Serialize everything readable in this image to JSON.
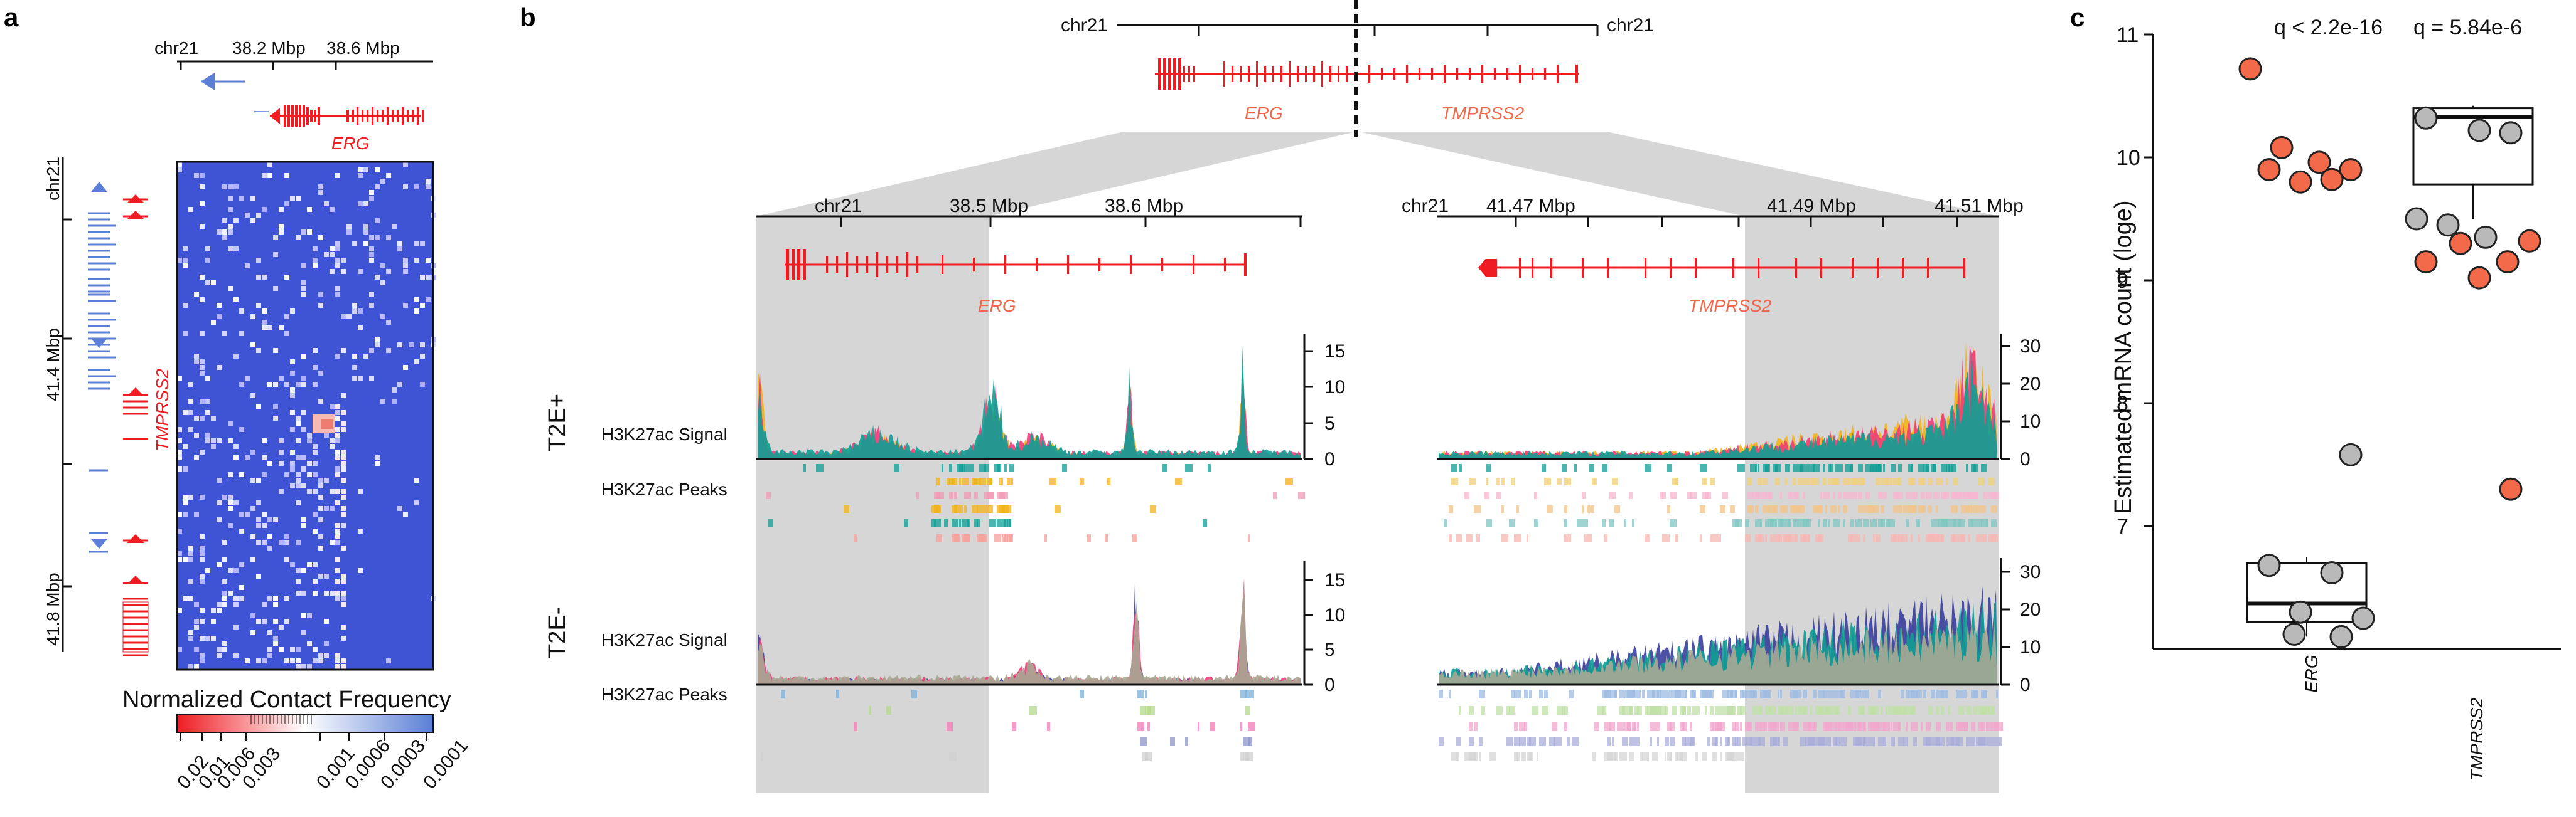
{
  "colors": {
    "erg_red": "#ef1c22",
    "gene_orange": "#f0684a",
    "gene_blue": "#5b7fd6",
    "hic_bg": "#3e54d4",
    "shade": "#d6d6d6",
    "teal": "#0f9e94",
    "gold": "#f3b21a",
    "pink": "#ee3d7a",
    "navy": "#3a3e9c",
    "grey_fill": "#a9a993",
    "point_red": "#f26a4a",
    "point_grey": "#b9b9b9"
  },
  "panel_a": {
    "letter": "a",
    "chrom": "chr21",
    "top_ticks": [
      "38.2 Mbp",
      "38.6 Mbp"
    ],
    "side_ticks": [
      "41.4 Mbp",
      "41.8 Mbp"
    ],
    "side_chrom": "chr21",
    "gene_top": "ERG",
    "gene_side": "TMPRSS2",
    "colorbar_title": "Normalized Contact Frequency",
    "colorbar_ticks": [
      "0.02",
      "0.01",
      "0.006",
      "0.003",
      "0.001",
      "0.0006",
      "0.0003",
      "0.0001"
    ]
  },
  "panel_b": {
    "letter": "b",
    "overview": {
      "chrom_left": "chr21",
      "chrom_right": "chr21",
      "gene_left": "ERG",
      "gene_right": "TMPRSS2"
    },
    "left_locus": {
      "chrom": "chr21",
      "ticks": [
        "38.5 Mbp",
        "38.6 Mbp"
      ],
      "gene": "ERG"
    },
    "right_locus": {
      "chrom": "chr21",
      "ticks": [
        "41.47 Mbp",
        "41.49 Mbp",
        "41.51 Mbp"
      ],
      "gene": "TMPRSS2"
    },
    "group_pos": "T2E+",
    "group_neg": "T2E-",
    "signal_label": "H3K27ac Signal",
    "peaks_label": "H3K27ac Peaks",
    "y_left_pos": [
      "15",
      "10",
      "5",
      "0"
    ],
    "y_right_pos": [
      "30",
      "20",
      "10",
      "0"
    ],
    "y_left_neg": [
      "15",
      "10",
      "5",
      "0"
    ],
    "y_right_neg": [
      "30",
      "20",
      "10",
      "0"
    ]
  },
  "panel_c": {
    "letter": "c",
    "ylabel": "Estimated mRNA count (loge)",
    "yticks": [
      "11",
      "10",
      "9",
      "8",
      "7"
    ],
    "categories": [
      "ERG",
      "TMPRSS2"
    ],
    "qvals": [
      "q < 2.2e-16",
      "q = 5.84e-6"
    ]
  },
  "chart_data": {
    "type": "scatter",
    "title": "",
    "xlabel": "",
    "ylabel": "Estimated mRNA count (loge)",
    "ylim": [
      6.0,
      11.0
    ],
    "categories": [
      "ERG",
      "TMPRSS2"
    ],
    "series": [
      {
        "name": "",
        "color": "#f26a4a",
        "points": [
          [
            "ERG",
            10.72
          ],
          [
            "ERG",
            10.08
          ],
          [
            "ERG",
            9.96
          ],
          [
            "ERG",
            9.9
          ],
          [
            "ERG",
            9.9
          ],
          [
            "ERG",
            9.82
          ],
          [
            "ERG",
            9.8
          ],
          [
            "TMPRSS2",
            9.32
          ],
          [
            "TMPRSS2",
            9.3
          ],
          [
            "TMPRSS2",
            9.15
          ],
          [
            "TMPRSS2",
            9.15
          ],
          [
            "TMPRSS2",
            9.02
          ],
          [
            "TMPRSS2",
            7.3
          ]
        ]
      },
      {
        "name": "",
        "color": "#b9b9b9",
        "points": [
          [
            "ERG",
            7.58
          ],
          [
            "ERG",
            6.68
          ],
          [
            "ERG",
            6.62
          ],
          [
            "ERG",
            6.3
          ],
          [
            "ERG",
            6.25
          ],
          [
            "ERG",
            6.12
          ],
          [
            "ERG",
            6.1
          ],
          [
            "TMPRSS2",
            10.32
          ],
          [
            "TMPRSS2",
            10.22
          ],
          [
            "TMPRSS2",
            10.2
          ],
          [
            "TMPRSS2",
            9.5
          ],
          [
            "TMPRSS2",
            9.45
          ],
          [
            "TMPRSS2",
            9.35
          ]
        ]
      }
    ],
    "boxes": [
      {
        "category": "ERG",
        "q1": 6.22,
        "median": 6.37,
        "q3": 6.7,
        "whisker_low": 6.1,
        "whisker_high": 6.75
      },
      {
        "category": "TMPRSS2",
        "q1": 9.78,
        "median": 10.33,
        "q3": 10.4,
        "whisker_low": 9.5,
        "whisker_high": 10.42
      }
    ]
  }
}
